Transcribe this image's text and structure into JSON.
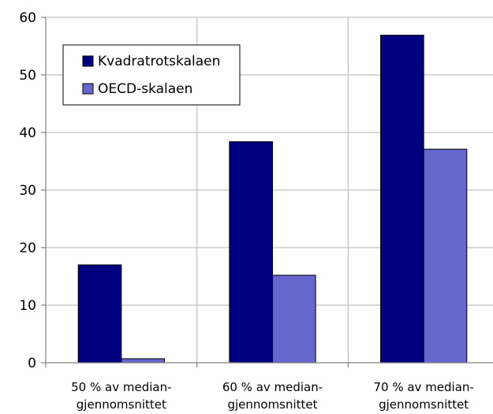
{
  "chart_data": {
    "type": "bar",
    "categories": [
      [
        "50 % av median-",
        "gjennomsnittet"
      ],
      [
        "60 % av median-",
        "gjennomsnittet"
      ],
      [
        "70 % av median-",
        "gjennomsnittet"
      ]
    ],
    "series": [
      {
        "name": "Kvadratrotskalaen",
        "values": [
          17.0,
          38.4,
          56.9
        ],
        "color": "#000080"
      },
      {
        "name": "OECD-skalaen",
        "values": [
          0.7,
          15.2,
          37.1
        ],
        "color": "#6666cc"
      }
    ],
    "ylim": [
      0,
      60
    ],
    "yticks": [
      "0",
      "10",
      "20",
      "30",
      "40",
      "50",
      "60"
    ],
    "grid": true,
    "legend_position": "top-left"
  }
}
